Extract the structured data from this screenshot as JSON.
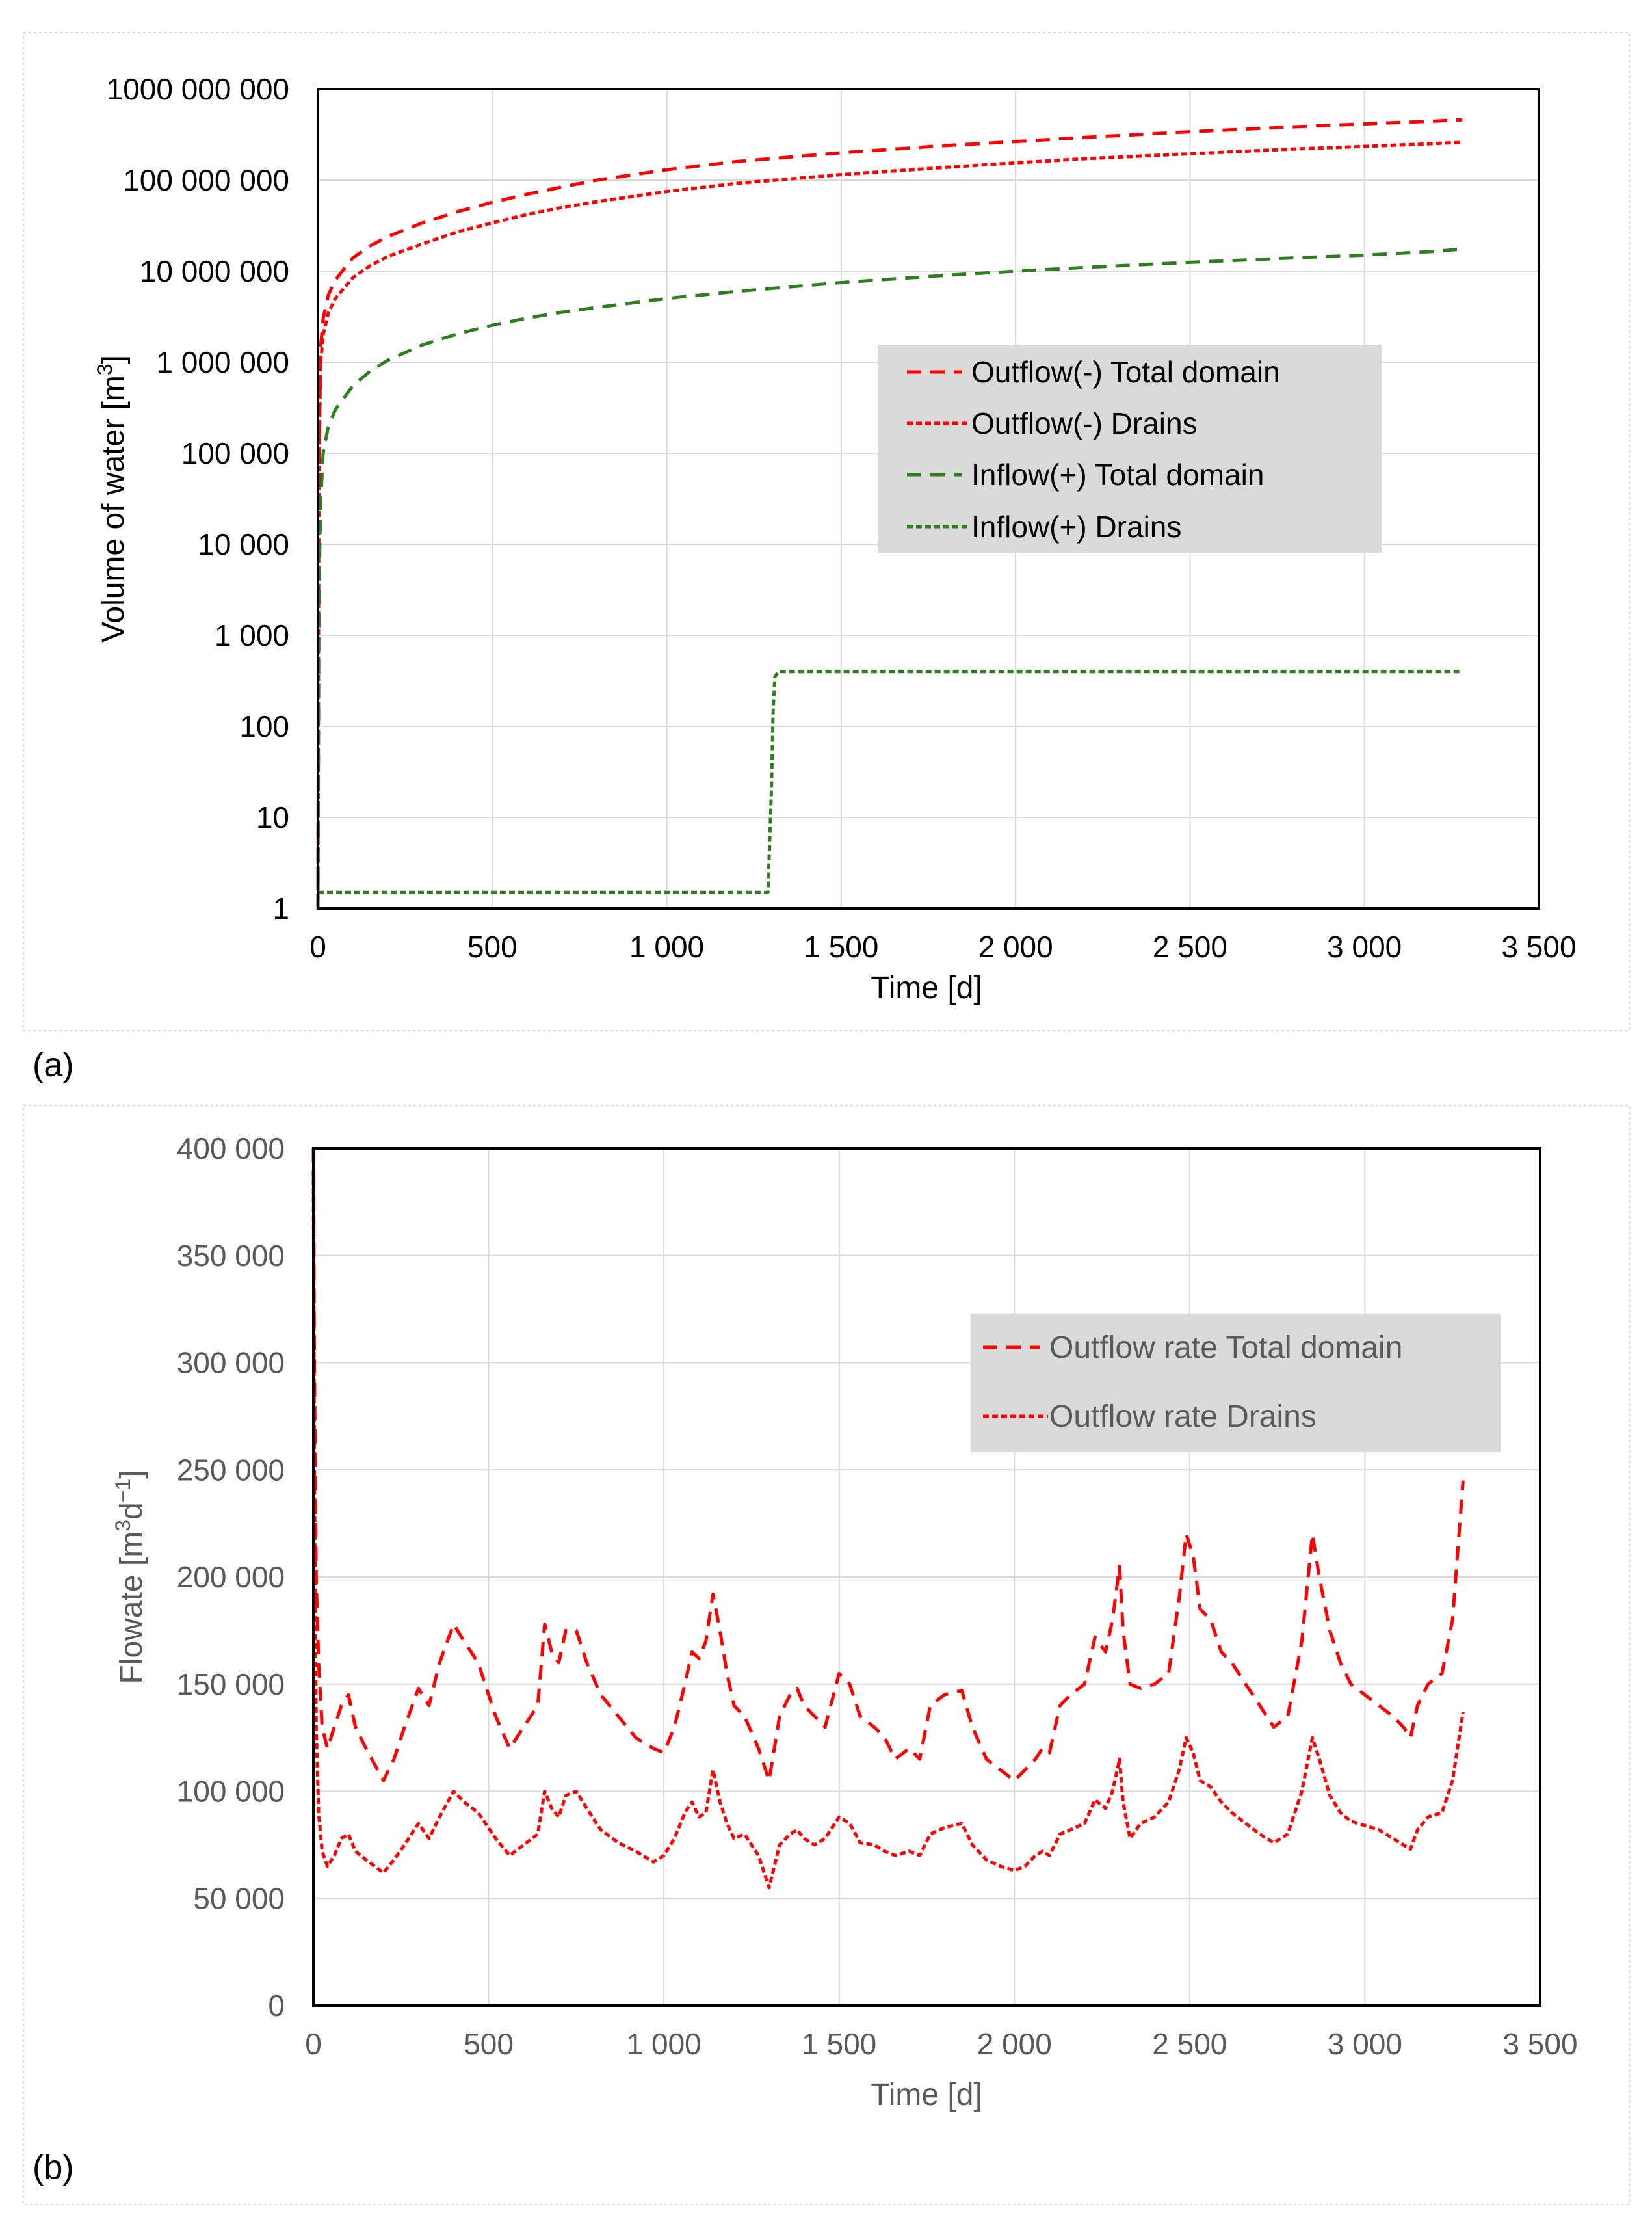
{
  "chart_data": [
    {
      "panel_label": "(a)",
      "type": "line",
      "yscale": "log",
      "xlabel": "Time [d]",
      "ylabel": "Volume of water  [m",
      "ylabel_sup": "3",
      "ylabel_end": "]",
      "xlim": [
        0,
        3500
      ],
      "ylim": [
        1,
        1000000000
      ],
      "x_ticks": [
        0,
        500,
        1000,
        1500,
        2000,
        2500,
        3000,
        3500
      ],
      "x_tick_labels": [
        "0",
        "500",
        "1 000",
        "1 500",
        "2 000",
        "2 500",
        "3 000",
        "3 500"
      ],
      "y_ticks": [
        1,
        10,
        100,
        1000,
        10000,
        100000,
        1000000,
        10000000,
        100000000,
        1000000000
      ],
      "y_tick_labels": [
        "1",
        "10",
        "100",
        "1 000",
        "10 000",
        "100 000",
        "1 000 000",
        "10 000 000",
        "100 000 000",
        "1000 000 000"
      ],
      "legend_position": "center-right",
      "series": [
        {
          "name": "Outflow(-) Total domain",
          "color": "#ff0000",
          "dash": "long",
          "x": [
            0,
            3,
            8,
            15,
            30,
            50,
            100,
            150,
            200,
            300,
            400,
            500,
            600,
            700,
            800,
            1000,
            1200,
            1500,
            1800,
            2000,
            2200,
            2500,
            2800,
            3000,
            3200,
            3280
          ],
          "y": [
            1,
            100000,
            1500000,
            3000000,
            5500000,
            8000000,
            14000000,
            19000000,
            24000000,
            34000000,
            45000000,
            57000000,
            70000000,
            84000000,
            100000000,
            130000000,
            160000000,
            200000000,
            240000000,
            265000000,
            295000000,
            340000000,
            385000000,
            415000000,
            445000000,
            460000000
          ]
        },
        {
          "name": "Outflow(-) Drains",
          "color": "#ff0000",
          "dash": "short",
          "x": [
            0,
            3,
            8,
            15,
            30,
            50,
            100,
            150,
            200,
            300,
            400,
            500,
            600,
            700,
            800,
            1000,
            1200,
            1500,
            1800,
            2000,
            2200,
            2500,
            2800,
            3000,
            3200,
            3280
          ],
          "y": [
            1,
            80000,
            1000000,
            2000000,
            3500000,
            5000000,
            8500000,
            11500000,
            14500000,
            20000000,
            27000000,
            34000000,
            42000000,
            50000000,
            58000000,
            75000000,
            92000000,
            115000000,
            138000000,
            155000000,
            172000000,
            195000000,
            220000000,
            235000000,
            252000000,
            260000000
          ]
        },
        {
          "name": "Inflow(+) Total domain",
          "color": "#2e7d1e",
          "dash": "long",
          "x": [
            0,
            3,
            8,
            15,
            30,
            50,
            100,
            150,
            200,
            300,
            400,
            500,
            600,
            700,
            800,
            1000,
            1200,
            1500,
            1800,
            2000,
            2200,
            2500,
            2800,
            3000,
            3200,
            3280
          ],
          "y": [
            1,
            3000,
            30000,
            100000,
            200000,
            300000,
            550000,
            800000,
            1050000,
            1550000,
            2050000,
            2550000,
            3050000,
            3550000,
            4000000,
            5000000,
            6000000,
            7500000,
            9000000,
            10000000,
            11000000,
            12500000,
            14000000,
            15000000,
            16500000,
            17500000
          ]
        },
        {
          "name": "Inflow(+) Drains",
          "color": "#2e7d1e",
          "dash": "short",
          "x": [
            0,
            1270,
            1290,
            1300,
            1305,
            1310,
            1320,
            3280
          ],
          "y": [
            1.5,
            1.5,
            1.5,
            20,
            150,
            350,
            400,
            400
          ]
        }
      ]
    },
    {
      "panel_label": "(b)",
      "type": "line",
      "yscale": "linear",
      "xlabel": "Time [d]",
      "ylabel": "Flowate [m",
      "ylabel_sup1": "3",
      "ylabel_mid": "d",
      "ylabel_sup2": "−1",
      "ylabel_end": "]",
      "xlim": [
        0,
        3500
      ],
      "ylim": [
        0,
        400000
      ],
      "x_ticks": [
        0,
        500,
        1000,
        1500,
        2000,
        2500,
        3000,
        3500
      ],
      "x_tick_labels": [
        "0",
        "500",
        "1 000",
        "1 500",
        "2 000",
        "2 500",
        "3 000",
        "3 500"
      ],
      "y_ticks": [
        0,
        50000,
        100000,
        150000,
        200000,
        250000,
        300000,
        350000,
        400000
      ],
      "y_tick_labels": [
        "0",
        "50 000",
        "100 000",
        "150 000",
        "200 000",
        "250 000",
        "300 000",
        "350 000",
        "400 000"
      ],
      "legend_position": "top-right",
      "series": [
        {
          "name": "Outflow rate Total domain",
          "color": "#ff0000",
          "dash": "long",
          "x": [
            0,
            3,
            8,
            15,
            25,
            40,
            60,
            80,
            100,
            120,
            150,
            200,
            230,
            260,
            300,
            330,
            360,
            400,
            430,
            470,
            520,
            560,
            600,
            640,
            660,
            680,
            700,
            720,
            750,
            780,
            820,
            870,
            920,
            970,
            1000,
            1030,
            1060,
            1080,
            1100,
            1120,
            1140,
            1160,
            1180,
            1200,
            1230,
            1270,
            1300,
            1330,
            1360,
            1380,
            1400,
            1430,
            1460,
            1500,
            1530,
            1560,
            1600,
            1630,
            1660,
            1700,
            1730,
            1760,
            1800,
            1850,
            1880,
            1920,
            1960,
            2000,
            2030,
            2060,
            2080,
            2100,
            2130,
            2160,
            2200,
            2230,
            2260,
            2280,
            2300,
            2310,
            2330,
            2360,
            2400,
            2440,
            2470,
            2490,
            2510,
            2530,
            2560,
            2590,
            2620,
            2660,
            2700,
            2740,
            2780,
            2820,
            2850,
            2870,
            2900,
            2930,
            2960,
            3000,
            3040,
            3080,
            3110,
            3130,
            3150,
            3180,
            3220,
            3250,
            3280
          ],
          "y": [
            400000,
            300000,
            200000,
            160000,
            130000,
            120000,
            130000,
            140000,
            145000,
            130000,
            120000,
            105000,
            115000,
            130000,
            148000,
            140000,
            160000,
            178000,
            170000,
            160000,
            135000,
            120000,
            130000,
            140000,
            178000,
            165000,
            160000,
            175000,
            175000,
            160000,
            145000,
            135000,
            125000,
            120000,
            118000,
            130000,
            150000,
            165000,
            162000,
            170000,
            192000,
            175000,
            155000,
            140000,
            135000,
            120000,
            105000,
            135000,
            145000,
            148000,
            140000,
            135000,
            130000,
            155000,
            150000,
            135000,
            130000,
            125000,
            115000,
            120000,
            115000,
            140000,
            145000,
            147000,
            130000,
            115000,
            110000,
            105000,
            110000,
            115000,
            120000,
            118000,
            140000,
            145000,
            150000,
            172000,
            165000,
            180000,
            205000,
            175000,
            150000,
            148000,
            150000,
            155000,
            190000,
            220000,
            210000,
            185000,
            180000,
            165000,
            160000,
            150000,
            140000,
            130000,
            135000,
            170000,
            220000,
            200000,
            175000,
            160000,
            150000,
            145000,
            140000,
            135000,
            130000,
            125000,
            140000,
            150000,
            155000,
            180000,
            245000
          ]
        },
        {
          "name": "Outflow rate Drains",
          "color": "#ff0000",
          "dash": "short",
          "x": [
            0,
            3,
            8,
            15,
            25,
            40,
            60,
            80,
            100,
            120,
            150,
            200,
            230,
            260,
            300,
            330,
            360,
            400,
            430,
            470,
            520,
            560,
            600,
            640,
            660,
            680,
            700,
            720,
            750,
            780,
            820,
            870,
            920,
            970,
            1000,
            1030,
            1060,
            1080,
            1100,
            1120,
            1140,
            1160,
            1180,
            1200,
            1230,
            1270,
            1300,
            1330,
            1360,
            1380,
            1400,
            1430,
            1460,
            1500,
            1530,
            1560,
            1600,
            1630,
            1660,
            1700,
            1730,
            1760,
            1800,
            1850,
            1880,
            1920,
            1960,
            2000,
            2030,
            2060,
            2080,
            2100,
            2130,
            2160,
            2200,
            2230,
            2260,
            2280,
            2300,
            2310,
            2330,
            2360,
            2400,
            2440,
            2470,
            2490,
            2510,
            2530,
            2560,
            2590,
            2620,
            2660,
            2700,
            2740,
            2780,
            2820,
            2850,
            2870,
            2900,
            2930,
            2960,
            3000,
            3040,
            3080,
            3110,
            3130,
            3150,
            3180,
            3220,
            3250,
            3280
          ],
          "y": [
            390000,
            250000,
            130000,
            90000,
            72000,
            65000,
            70000,
            78000,
            80000,
            72000,
            68000,
            62000,
            68000,
            75000,
            85000,
            78000,
            88000,
            100000,
            95000,
            90000,
            78000,
            70000,
            75000,
            80000,
            100000,
            92000,
            88000,
            98000,
            100000,
            92000,
            82000,
            76000,
            72000,
            67000,
            70000,
            78000,
            90000,
            95000,
            88000,
            90000,
            110000,
            95000,
            85000,
            78000,
            80000,
            70000,
            55000,
            75000,
            80000,
            82000,
            78000,
            75000,
            78000,
            88000,
            85000,
            76000,
            75000,
            72000,
            70000,
            72000,
            70000,
            80000,
            83000,
            85000,
            75000,
            68000,
            65000,
            63000,
            65000,
            70000,
            72000,
            70000,
            80000,
            82000,
            85000,
            96000,
            92000,
            100000,
            115000,
            95000,
            78000,
            85000,
            88000,
            95000,
            110000,
            125000,
            118000,
            105000,
            102000,
            95000,
            90000,
            85000,
            80000,
            76000,
            80000,
            100000,
            125000,
            115000,
            98000,
            90000,
            86000,
            84000,
            82000,
            78000,
            75000,
            73000,
            82000,
            88000,
            90000,
            105000,
            137000
          ]
        }
      ]
    }
  ]
}
